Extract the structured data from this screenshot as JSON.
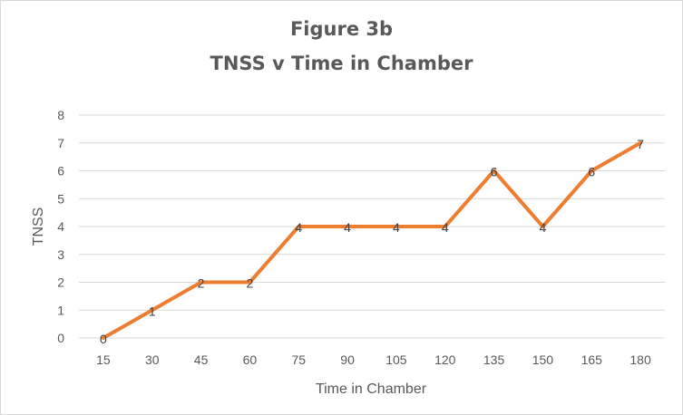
{
  "chart_data": {
    "type": "line",
    "title": "Figure 3b",
    "subtitle": "TNSS v Time in Chamber",
    "xlabel": "Time in Chamber",
    "ylabel": "TNSS",
    "categories": [
      "15",
      "30",
      "45",
      "60",
      "75",
      "90",
      "105",
      "120",
      "135",
      "150",
      "165",
      "180"
    ],
    "series": [
      {
        "values": [
          0,
          1,
          2,
          2,
          4,
          4,
          4,
          4,
          6,
          4,
          6,
          7
        ]
      }
    ],
    "ylim": [
      0,
      8
    ],
    "yticks": [
      0,
      1,
      2,
      3,
      4,
      5,
      6,
      7,
      8
    ],
    "grid": true,
    "legend": "none",
    "data_labels": true,
    "colors": {
      "line": "#ED7D31",
      "grid": "#d9d9d9",
      "text": "#595959"
    }
  }
}
